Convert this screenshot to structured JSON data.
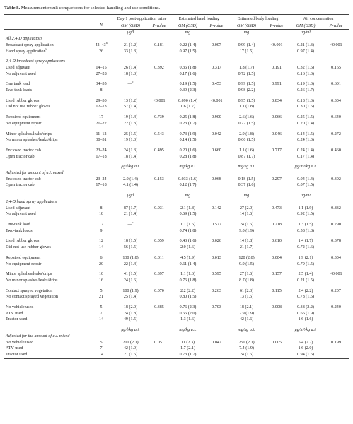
{
  "caption": {
    "label": "Table 8.",
    "text": "Measurement result comparisons for selected handling and use conditions."
  },
  "header": {
    "groups": [
      "Day 1 post-application urine",
      "Estimated hand loading",
      "Estimated body loading",
      "Air concentration"
    ],
    "columns": [
      "N",
      "GM (GSD)",
      "P-value",
      "GM (GSD)",
      "P-value",
      "GM (GSD)",
      "P-value",
      "GM (GSD)",
      "P-value"
    ]
  },
  "sections": [
    {
      "title": "All 2,4-D applicators",
      "units": [
        "μg/l",
        "mg",
        "mg",
        "μg/m³"
      ],
      "groups": [
        [
          [
            "Broadcast spray application",
            {
              "text": "42–43",
              "sup": "a"
            },
            "21 (1.2)",
            "0.181",
            "0.22 (1.4)",
            "0.007",
            "0.99 (1.4)",
            "<0.001",
            "0.21 (1.3)",
            "<0.001"
          ],
          [
            {
              "text": "Hand spray application",
              "sup": "b"
            },
            "26",
            "33 (1.3)",
            null,
            "0.97 (1.5)",
            null,
            "17 (1.5)",
            null,
            "0.97 (1.4)",
            null
          ]
        ]
      ]
    },
    {
      "title": "2,4-D broadcast spray applicators",
      "units": null,
      "groups": [
        [
          [
            "Used adjuvant",
            "14–15",
            "26 (1.4)",
            "0.392",
            "0.36 (1.8)",
            "0.317",
            "1.8 (1.7)",
            "0.191",
            "0.32 (1.5)",
            "0.165"
          ],
          [
            "No adjuvant used",
            "27–28",
            "18 (1.3)",
            null,
            "0.17 (1.6)",
            null,
            "0.72 (1.5)",
            null,
            "0.16 (1.3)",
            null
          ]
        ],
        [
          [
            "One tank load",
            "34–35",
            {
              "text": "—",
              "sup": "c"
            },
            null,
            "0.19 (1.5)",
            "0.453",
            "0.99 (1.5)",
            "0.991",
            "0.19 (1.3)",
            "0.601"
          ],
          [
            "Two tank loads",
            "8",
            null,
            null,
            "0.39 (2.3)",
            null,
            "0.98 (2.2)",
            null,
            "0.26 (1.7)",
            null
          ]
        ],
        [
          [
            "Used rubber gloves",
            "29–30",
            "13 (1.2)",
            "<0.001",
            "0.090 (1.4)",
            "<0.001",
            "0.95 (1.5)",
            "0.834",
            "0.18 (1.3)",
            "0.304"
          ],
          [
            "Did not use rubber gloves",
            "12–13",
            "57 (1.4)",
            null,
            "1.6 (1.7)",
            null,
            "1.1 (1.8)",
            null,
            "0.30 (1.5)",
            null
          ]
        ],
        [
          [
            "Repaired equipment",
            "17",
            "19 (1.4)",
            "0.739",
            "0.25 (1.8)",
            "0.900",
            "2.6 (1.6)",
            "0.066",
            "0.25 (1.5)",
            "0.640"
          ],
          [
            "No equipment repair",
            "21–22",
            "22 (1.3)",
            null,
            "0.23 (1.7)",
            null,
            "0.77 (1.5)",
            null,
            "0.20 (1.4)",
            null
          ]
        ],
        [
          [
            "Minor splashes/leaks/drips",
            "11–12",
            "25 (1.5)",
            "0.543",
            "0.73 (1.9)",
            "0.042",
            "2.9 (1.8)",
            "0.046",
            "0.14 (1.5)",
            "0.272"
          ],
          [
            "No minor splashes/leaks/drips",
            "30–31",
            "19 (1.3)",
            null,
            "0.14 (1.5)",
            null,
            "0.66 (1.5)",
            null,
            "0.24 (1.3)",
            null
          ]
        ],
        [
          [
            "Enclosed tractor cab",
            "23–24",
            "24 (1.3)",
            "0.495",
            "0.20 (1.6)",
            "0.660",
            "1.1 (1.6)",
            "0.717",
            "0.24 (1.4)",
            "0.460"
          ],
          [
            "Open tractor cab",
            "17–18",
            "18 (1.4)",
            null,
            "0.28 (1.8)",
            null,
            "0.87 (1.7)",
            null,
            "0.17 (1.4)",
            null
          ]
        ]
      ]
    },
    {
      "title": "Adjusted for amount of a.i. mixed",
      "units": [
        "μg/l/kg a.i.",
        "mg/kg a.i.",
        "mg/kg a.i.",
        "μg/m³/kg a.i."
      ],
      "groups": [
        [
          [
            "Enclosed tractor cab",
            "23–24",
            "2.0 (1.4)",
            "0.153",
            "0.033 (1.6)",
            "0.068",
            "0.18 (1.5)",
            "0.297",
            "0.04 (1.4)",
            "0.302"
          ],
          [
            "Open tractor cab",
            "17–18",
            "4.1 (1.4)",
            null,
            "0.12 (1.7)",
            null,
            "0.37 (1.6)",
            null,
            "0.07 (1.5)",
            null
          ]
        ]
      ]
    },
    {
      "title": "2,4-D hand spray applicators",
      "units": [
        "μg/l",
        "mg",
        "mg",
        "μg/m³"
      ],
      "groups": [
        [
          [
            "Used adjuvant",
            "8",
            "87 (1.7)",
            "0.031",
            "2.1 (1.8)",
            "0.142",
            "27 (2.0)",
            "0.473",
            "1.1 (1.9)",
            "0.832"
          ],
          [
            "No adjuvant used",
            "18",
            "21 (1.4)",
            null,
            "0.69 (1.5)",
            null,
            "14 (1.6)",
            null,
            "0.92 (1.5)",
            null
          ]
        ],
        [
          [
            "One-tank load",
            "17",
            {
              "text": "—",
              "sup": "c"
            },
            null,
            "1.1 (1.6)",
            "0.577",
            "24 (1.6)",
            "0.218",
            "1.3 (1.5)",
            "0.290"
          ],
          [
            "Two-tank loads",
            "9",
            null,
            null,
            "0.74 (1.8)",
            null,
            "9.0 (1.9)",
            null,
            "0.58 (1.8)",
            null
          ]
        ],
        [
          [
            "Used rubber gloves",
            "12",
            "18 (1.5)",
            "0.059",
            "0.43 (1.6)",
            "0.026",
            "14 (1.8)",
            "0.610",
            "1.4 (1.7)",
            "0.378"
          ],
          [
            "Did-not-use rubber gloves",
            "14",
            "56 (1.5)",
            null,
            "2.0 (1.6)",
            null,
            "21 (1.7)",
            null,
            "0.72 (1.6)",
            null
          ]
        ],
        [
          [
            "Repaired equipment",
            "6",
            "130 (1.8)",
            "0.011",
            "4.5 (1.9)",
            "0.013",
            "120 (2.0)",
            "0.004",
            "1.9 (2.1)",
            "0.304"
          ],
          [
            "No equipment repair",
            "20",
            "22 (1.4)",
            null,
            "0.61 (1.4)",
            null,
            "9.9 (1.5)",
            null,
            "0.79 (1.5)",
            null
          ]
        ],
        [
          [
            "Minor splashes/leaks/drips",
            "10",
            "41 (1.5)",
            "0.397",
            "1.1 (1.6)",
            "0.595",
            "27 (1.6)",
            "0.157",
            "2.5 (1.4)",
            "<0.001"
          ],
          [
            "No minor splashes/leaks/drips",
            "16",
            "24 (1.6)",
            null,
            "0.76 (1.8)",
            null,
            "8.7 (1.8)",
            null,
            "0.21 (1.5)",
            null
          ]
        ],
        [
          [
            "Contact sprayed vegetation",
            "5",
            "100 (1.9)",
            "0.070",
            "2.2 (2.2)",
            "0.263",
            "61 (2.3)",
            "0.115",
            "2.4 (2.2)",
            "0.207"
          ],
          [
            "No contact sprayed vegetation",
            "21",
            "25 (1.4)",
            null,
            "0.80 (1.5)",
            null,
            "13 (1.5)",
            null,
            "0.78 (1.5)",
            null
          ]
        ],
        [
          [
            "No vehicle used",
            "5",
            "18 (2.0)",
            "0.385",
            "0.76 (2.3)",
            "0.703",
            "18 (2.1)",
            "0.008",
            "0.38 (2.2)",
            "0.240"
          ],
          [
            "ATV used",
            "7",
            "24 (1.8)",
            null,
            "0.66 (2.0)",
            null,
            "2.9 (1.9)",
            null,
            "0.66 (1.9)",
            null
          ],
          [
            "Tractor used",
            "14",
            "49 (1.5)",
            null,
            "1.3 (1.6)",
            null,
            "42 (1.6)",
            null,
            "1.6 (1.6)",
            null
          ]
        ]
      ]
    },
    {
      "title": "Adjusted for the amount of a.i. mixed",
      "units": [
        "μg/l/kg a.i.",
        "mg/kg a.i.",
        "mg/kg a.i.",
        "μg/m³/kg a.i."
      ],
      "groups": [
        [
          [
            "No vehicle used",
            "5",
            "200 (2.1)",
            "0.051",
            "11 (2.3)",
            "0.042",
            "250 (2.1)",
            "0.005",
            "5.4 (2.2)",
            "0.199"
          ],
          [
            "ATV used",
            "7",
            "42 (1.9)",
            null,
            "1.7 (2.1)",
            null,
            "7.4 (1.9)",
            null,
            "1.6 (2.0)",
            null
          ],
          [
            "Tractor used",
            "14",
            "21 (1.6)",
            null,
            "0.73 (1.7)",
            null,
            "24 (1.6)",
            null,
            "0.94 (1.6)",
            null
          ]
        ]
      ]
    }
  ]
}
